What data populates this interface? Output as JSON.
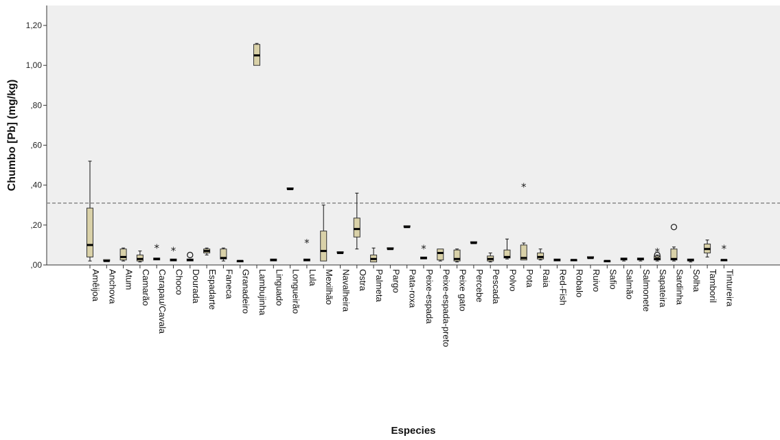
{
  "chart_data": {
    "type": "boxplot",
    "ylabel": "Chumbo [Pb] (mg/kg)",
    "xlabel": "Especies",
    "ylim": [
      0,
      1.3
    ],
    "yticks": [
      0,
      0.2,
      0.4,
      0.6,
      0.8,
      1.0,
      1.2
    ],
    "ytick_labels": [
      ",00",
      ",20",
      ",40",
      ",60",
      ",80",
      "1,00",
      "1,20"
    ],
    "reference_line": {
      "y": 0.31,
      "style": "dashed"
    },
    "box_color": "#d9d1a8",
    "plot_background": "#efefef",
    "grid": false,
    "categories": [
      "Amêijoa",
      "Anchova",
      "Atum",
      "Camarão",
      "Carapau/Cavala",
      "Choco",
      "Dourada",
      "Espadarte",
      "Faneca",
      "Granadeiro",
      "Lambujinha",
      "Linguado",
      "Longueirão",
      "Lula",
      "Mexilhão",
      "Navalheira",
      "Ostra",
      "Palmeta",
      "Pargo",
      "Pata-roxa",
      "Peixe-espada",
      "Peixe-espada-preto",
      "Peixe gato",
      "Percebe",
      "Pescada",
      "Polvo",
      "Pota",
      "Raia",
      "Red-Fish",
      "Robalo",
      "Ruivo",
      "Safio",
      "Salmão",
      "Salmonete",
      "Sapateira",
      "Sardinha",
      "Solha",
      "Tamboril",
      "Tintureira"
    ],
    "boxes": [
      {
        "min": 0.02,
        "q1": 0.04,
        "median": 0.1,
        "q3": 0.285,
        "max": 0.52
      },
      {
        "min": 0.02,
        "q1": 0.02,
        "median": 0.02,
        "q3": 0.025,
        "max": 0.025
      },
      {
        "min": 0.02,
        "q1": 0.025,
        "median": 0.04,
        "q3": 0.08,
        "max": 0.085
      },
      {
        "min": 0.015,
        "q1": 0.02,
        "median": 0.03,
        "q3": 0.05,
        "max": 0.07
      },
      {
        "min": 0.025,
        "q1": 0.025,
        "median": 0.03,
        "q3": 0.035,
        "max": 0.035,
        "outliers": [
          {
            "y": 0.085,
            "marker": "star"
          }
        ]
      },
      {
        "min": 0.02,
        "q1": 0.02,
        "median": 0.025,
        "q3": 0.03,
        "max": 0.03,
        "outliers": [
          {
            "y": 0.07,
            "marker": "star"
          }
        ]
      },
      {
        "min": 0.02,
        "q1": 0.02,
        "median": 0.025,
        "q3": 0.03,
        "max": 0.03,
        "outliers": [
          {
            "y": 0.05,
            "marker": "circle"
          }
        ]
      },
      {
        "min": 0.05,
        "q1": 0.06,
        "median": 0.07,
        "q3": 0.08,
        "max": 0.085
      },
      {
        "min": 0.02,
        "q1": 0.03,
        "median": 0.035,
        "q3": 0.08,
        "max": 0.085
      },
      {
        "min": 0.015,
        "q1": 0.015,
        "median": 0.02,
        "q3": 0.02,
        "max": 0.02
      },
      {
        "min": 1.0,
        "q1": 1.0,
        "median": 1.05,
        "q3": 1.105,
        "max": 1.11
      },
      {
        "min": 0.02,
        "q1": 0.02,
        "median": 0.025,
        "q3": 0.03,
        "max": 0.03
      },
      {
        "min": 0.38,
        "q1": 0.38,
        "median": 0.38,
        "q3": 0.38,
        "max": 0.38
      },
      {
        "min": 0.02,
        "q1": 0.02,
        "median": 0.025,
        "q3": 0.03,
        "max": 0.03,
        "outliers": [
          {
            "y": 0.11,
            "marker": "star"
          }
        ]
      },
      {
        "min": 0.02,
        "q1": 0.02,
        "median": 0.07,
        "q3": 0.17,
        "max": 0.3
      },
      {
        "min": 0.06,
        "q1": 0.06,
        "median": 0.06,
        "q3": 0.06,
        "max": 0.06
      },
      {
        "min": 0.08,
        "q1": 0.14,
        "median": 0.18,
        "q3": 0.235,
        "max": 0.36
      },
      {
        "min": 0.015,
        "q1": 0.015,
        "median": 0.03,
        "q3": 0.05,
        "max": 0.085
      },
      {
        "min": 0.08,
        "q1": 0.08,
        "median": 0.08,
        "q3": 0.08,
        "max": 0.08
      },
      {
        "min": 0.19,
        "q1": 0.19,
        "median": 0.19,
        "q3": 0.19,
        "max": 0.19
      },
      {
        "min": 0.03,
        "q1": 0.03,
        "median": 0.035,
        "q3": 0.04,
        "max": 0.04,
        "outliers": [
          {
            "y": 0.08,
            "marker": "star"
          }
        ]
      },
      {
        "min": 0.02,
        "q1": 0.025,
        "median": 0.06,
        "q3": 0.08,
        "max": 0.08
      },
      {
        "min": 0.015,
        "q1": 0.02,
        "median": 0.03,
        "q3": 0.075,
        "max": 0.08
      },
      {
        "min": 0.11,
        "q1": 0.11,
        "median": 0.11,
        "q3": 0.11,
        "max": 0.11
      },
      {
        "min": 0.015,
        "q1": 0.02,
        "median": 0.03,
        "q3": 0.045,
        "max": 0.06
      },
      {
        "min": 0.03,
        "q1": 0.035,
        "median": 0.04,
        "q3": 0.075,
        "max": 0.13
      },
      {
        "min": 0.025,
        "q1": 0.025,
        "median": 0.035,
        "q3": 0.1,
        "max": 0.11,
        "outliers": [
          {
            "y": 0.39,
            "marker": "star"
          }
        ]
      },
      {
        "min": 0.025,
        "q1": 0.03,
        "median": 0.04,
        "q3": 0.06,
        "max": 0.08
      },
      {
        "min": 0.02,
        "q1": 0.02,
        "median": 0.025,
        "q3": 0.03,
        "max": 0.03
      },
      {
        "min": 0.02,
        "q1": 0.02,
        "median": 0.025,
        "q3": 0.025,
        "max": 0.025
      },
      {
        "min": 0.035,
        "q1": 0.035,
        "median": 0.035,
        "q3": 0.035,
        "max": 0.035
      },
      {
        "min": 0.015,
        "q1": 0.015,
        "median": 0.02,
        "q3": 0.02,
        "max": 0.02
      },
      {
        "min": 0.02,
        "q1": 0.025,
        "median": 0.03,
        "q3": 0.035,
        "max": 0.035
      },
      {
        "min": 0.02,
        "q1": 0.025,
        "median": 0.03,
        "q3": 0.035,
        "max": 0.035
      },
      {
        "min": 0.02,
        "q1": 0.025,
        "median": 0.03,
        "q3": 0.045,
        "max": 0.05,
        "outliers": [
          {
            "y": 0.065,
            "marker": "star"
          },
          {
            "y": 0.05,
            "marker": "circle"
          }
        ]
      },
      {
        "min": 0.02,
        "q1": 0.025,
        "median": 0.03,
        "q3": 0.08,
        "max": 0.09,
        "outliers": [
          {
            "y": 0.19,
            "marker": "circle"
          }
        ]
      },
      {
        "min": 0.015,
        "q1": 0.02,
        "median": 0.025,
        "q3": 0.03,
        "max": 0.03
      },
      {
        "min": 0.04,
        "q1": 0.06,
        "median": 0.08,
        "q3": 0.105,
        "max": 0.125
      },
      {
        "min": 0.02,
        "q1": 0.02,
        "median": 0.025,
        "q3": 0.025,
        "max": 0.025,
        "outliers": [
          {
            "y": 0.08,
            "marker": "star"
          }
        ]
      }
    ]
  }
}
